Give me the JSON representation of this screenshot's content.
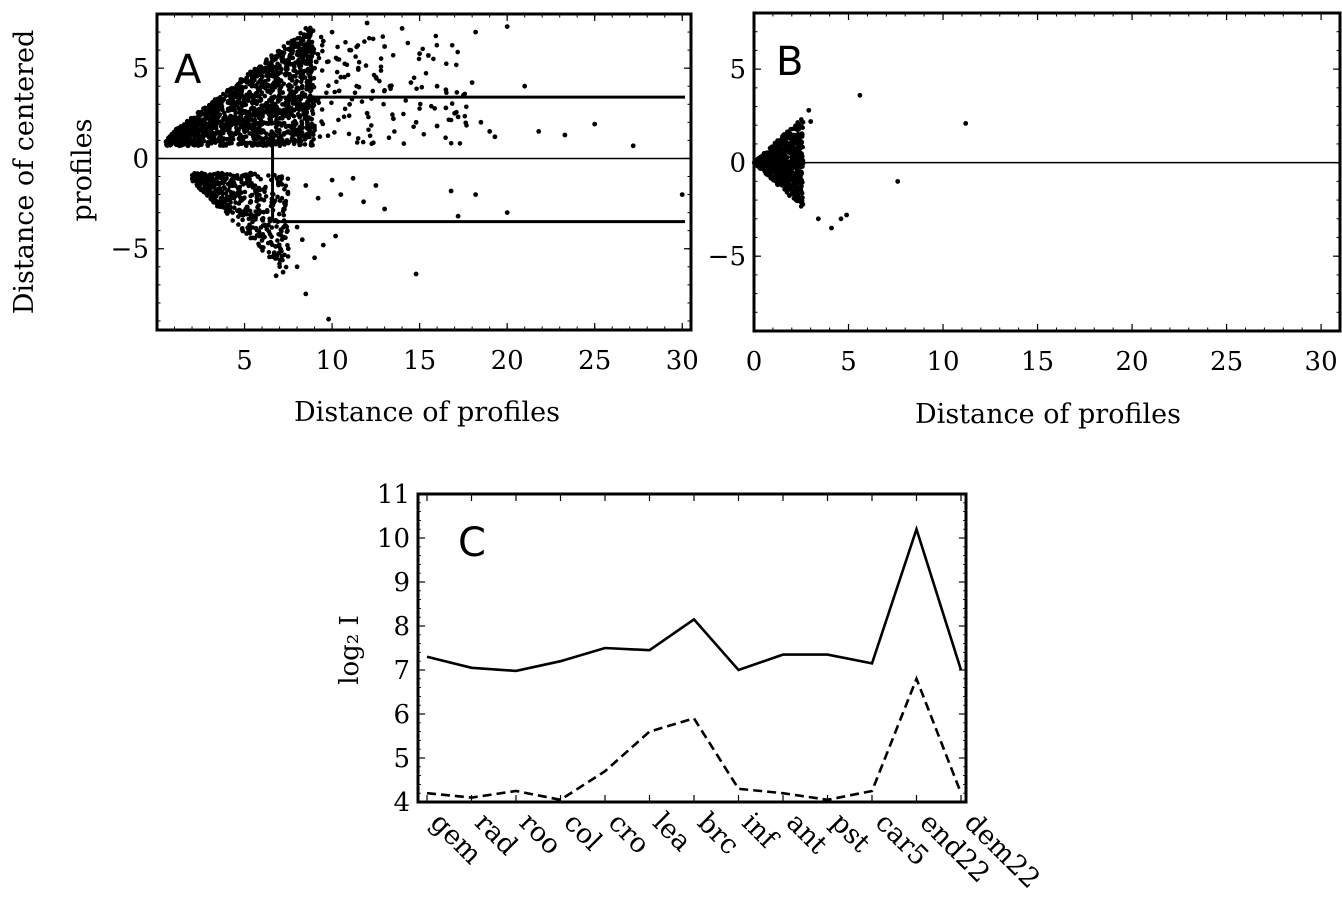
{
  "chart_data": [
    {
      "panel": "A",
      "type": "scatter",
      "xlabel": "Distance of profiles",
      "ylabel": [
        "Distance of centered",
        "profiles"
      ],
      "xlim": [
        0,
        30.5
      ],
      "ylim": [
        -9.5,
        8
      ],
      "xticks": [
        5,
        10,
        15,
        20,
        25,
        30
      ],
      "yticks": [
        -5,
        0,
        5
      ],
      "ytick_labels": [
        "−5",
        "0",
        "5"
      ],
      "reference_lines": {
        "zero": 0,
        "upper_threshold": 3.4,
        "lower_threshold": -3.5,
        "vertical_threshold": 6.6
      },
      "points": [
        [
          8.5,
          7.2
        ],
        [
          9,
          5
        ],
        [
          9.5,
          6.5
        ],
        [
          10,
          7
        ],
        [
          10.3,
          5.5
        ],
        [
          10.5,
          4.5
        ],
        [
          11,
          6
        ],
        [
          11.5,
          5
        ],
        [
          12,
          7.5
        ],
        [
          12.5,
          4.5
        ],
        [
          13,
          6.2
        ],
        [
          13.3,
          4
        ],
        [
          14,
          7.2
        ],
        [
          14.5,
          4.2
        ],
        [
          15,
          5.8
        ],
        [
          15.5,
          5.7
        ],
        [
          16,
          4
        ],
        [
          16.5,
          3.8
        ],
        [
          17,
          2.5
        ],
        [
          17.5,
          3.5
        ],
        [
          18,
          4.2
        ],
        [
          18.2,
          7
        ],
        [
          18.5,
          2
        ],
        [
          19,
          1.5
        ],
        [
          19.3,
          1.2
        ],
        [
          20,
          7.3
        ],
        [
          21,
          4
        ],
        [
          21.8,
          1.5
        ],
        [
          23.3,
          1.3
        ],
        [
          25,
          1.9
        ],
        [
          27.2,
          0.7
        ],
        [
          11,
          3
        ],
        [
          12,
          2.5
        ],
        [
          13.5,
          2.2
        ],
        [
          14.8,
          2
        ],
        [
          16,
          1.8
        ],
        [
          16.5,
          2.8
        ],
        [
          17.2,
          2.3
        ],
        [
          8.5,
          -1.5
        ],
        [
          9.2,
          -2.2
        ],
        [
          10,
          -1.2
        ],
        [
          10.5,
          -2
        ],
        [
          11.2,
          -1.1
        ],
        [
          11.8,
          -2.4
        ],
        [
          12.5,
          -1.5
        ],
        [
          13,
          -2.8
        ],
        [
          16.8,
          -1.8
        ],
        [
          18.2,
          -2
        ],
        [
          17.2,
          -3.2
        ],
        [
          20,
          -3
        ],
        [
          30,
          -2
        ],
        [
          7.5,
          -5
        ],
        [
          8,
          -3.8
        ],
        [
          8.3,
          -4.5
        ],
        [
          9,
          -5.5
        ],
        [
          9.5,
          -4.8
        ],
        [
          8,
          -6
        ],
        [
          7.2,
          -6.3
        ],
        [
          6.8,
          -6.5
        ],
        [
          14.8,
          -6.4
        ],
        [
          8.5,
          -7.5
        ],
        [
          9.8,
          -8.9
        ],
        [
          10.2,
          -4.3
        ]
      ],
      "dense_region": {
        "description_from_figure": "cone of points between x 0.5 and ~8 spreading from |y|≈0.8 to |y|≈6.5"
      }
    },
    {
      "panel": "B",
      "type": "scatter",
      "xlabel": "Distance of profiles",
      "xlim": [
        0,
        31
      ],
      "ylim": [
        -9,
        8
      ],
      "xticks": [
        0,
        5,
        10,
        15,
        20,
        25,
        30
      ],
      "yticks": [
        -5,
        0,
        5
      ],
      "ytick_labels": [
        "−5",
        "0",
        "5"
      ],
      "reference_lines": {
        "zero": 0
      },
      "points": [
        [
          5.6,
          3.6
        ],
        [
          11.2,
          2.1
        ],
        [
          7.6,
          -1
        ],
        [
          4.1,
          -3.5
        ],
        [
          4.6,
          -3
        ],
        [
          4.9,
          -2.8
        ],
        [
          3.4,
          -3
        ],
        [
          2.9,
          2.8
        ],
        [
          3,
          2.2
        ]
      ]
    },
    {
      "panel": "C",
      "type": "line",
      "ylabel": "log₂ I",
      "ylim": [
        4,
        11
      ],
      "yticks": [
        4,
        5,
        6,
        7,
        8,
        9,
        10,
        11
      ],
      "categories": [
        "gem",
        "rad",
        "roo",
        "col",
        "cro",
        "lea",
        "brc",
        "inf",
        "ant",
        "pst",
        "car5",
        "end22",
        "dem22"
      ],
      "series": [
        {
          "style": "solid",
          "values": [
            7.3,
            7.05,
            6.98,
            7.2,
            7.5,
            7.45,
            8.15,
            7.0,
            7.35,
            7.35,
            7.15,
            10.2,
            7.0
          ]
        },
        {
          "style": "dashed",
          "values": [
            4.2,
            4.1,
            4.25,
            4.05,
            4.7,
            5.6,
            5.9,
            4.3,
            4.2,
            4.05,
            4.25,
            6.8,
            4.2
          ]
        }
      ]
    }
  ],
  "labels": {
    "panel_a": "A",
    "panel_b": "B",
    "panel_c": "C"
  }
}
